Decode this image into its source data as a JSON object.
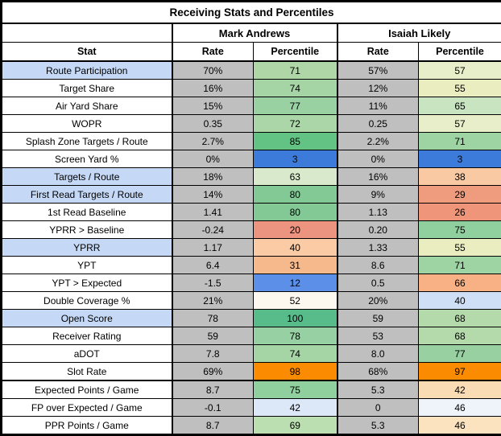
{
  "title": "Receiving Stats and Percentiles",
  "players": [
    {
      "name": "Mark Andrews"
    },
    {
      "name": "Isaiah Likely"
    }
  ],
  "columns": {
    "stat": "Stat",
    "rate": "Rate",
    "percentile": "Percentile"
  },
  "colors": {
    "rate_bg": "#BFBFBF",
    "stat_highlight_bg": "#C5D9F6",
    "stat_default_bg": "#FFFFFF",
    "border": "#000000",
    "percentile_low": "#3D7BDB",
    "percentile_high": "#57BB8A",
    "slot_rate_flag": "#FB8B00"
  },
  "rows": [
    {
      "stat": "Route Participation",
      "highlight": true,
      "thick_top": false,
      "mark": {
        "rate": "70%",
        "pct": "71",
        "pct_bg": "#AED6A6"
      },
      "likely": {
        "rate": "57%",
        "pct": "57",
        "pct_bg": "#E9EECA"
      }
    },
    {
      "stat": "Target Share",
      "highlight": false,
      "thick_top": false,
      "mark": {
        "rate": "16%",
        "pct": "74",
        "pct_bg": "#A5D4A5"
      },
      "likely": {
        "rate": "12%",
        "pct": "55",
        "pct_bg": "#E9EDBF"
      }
    },
    {
      "stat": "Air Yard Share",
      "highlight": false,
      "thick_top": false,
      "mark": {
        "rate": "15%",
        "pct": "77",
        "pct_bg": "#9AD1A3"
      },
      "likely": {
        "rate": "11%",
        "pct": "65",
        "pct_bg": "#C8E4C0"
      }
    },
    {
      "stat": "WOPR",
      "highlight": false,
      "thick_top": false,
      "mark": {
        "rate": "0.35",
        "pct": "72",
        "pct_bg": "#ABD7A8"
      },
      "likely": {
        "rate": "0.25",
        "pct": "57",
        "pct_bg": "#E9EECA"
      }
    },
    {
      "stat": "Splash Zone Targets / Route",
      "highlight": false,
      "thick_top": false,
      "mark": {
        "rate": "2.7%",
        "pct": "85",
        "pct_bg": "#63C384"
      },
      "likely": {
        "rate": "2.2%",
        "pct": "71",
        "pct_bg": "#9ED3A3"
      }
    },
    {
      "stat": "Screen Yard %",
      "highlight": false,
      "thick_top": false,
      "mark": {
        "rate": "0%",
        "pct": "3",
        "pct_bg": "#3D7BDB"
      },
      "likely": {
        "rate": "0%",
        "pct": "3",
        "pct_bg": "#3D7BDB"
      }
    },
    {
      "stat": "Targets / Route",
      "highlight": true,
      "thick_top": false,
      "mark": {
        "rate": "18%",
        "pct": "63",
        "pct_bg": "#D9EACC"
      },
      "likely": {
        "rate": "16%",
        "pct": "38",
        "pct_bg": "#F9C9A3"
      }
    },
    {
      "stat": "First Read Targets / Route",
      "highlight": true,
      "thick_top": false,
      "mark": {
        "rate": "14%",
        "pct": "80",
        "pct_bg": "#82C996"
      },
      "likely": {
        "rate": "9%",
        "pct": "29",
        "pct_bg": "#EF9B7E"
      }
    },
    {
      "stat": "1st Read Baseline",
      "highlight": false,
      "thick_top": false,
      "mark": {
        "rate": "1.41",
        "pct": "80",
        "pct_bg": "#82C996"
      },
      "likely": {
        "rate": "1.13",
        "pct": "26",
        "pct_bg": "#EE957A"
      }
    },
    {
      "stat": "YPRR > Baseline",
      "highlight": false,
      "thick_top": false,
      "mark": {
        "rate": "-0.24",
        "pct": "20",
        "pct_bg": "#EC9480"
      },
      "likely": {
        "rate": "0.20",
        "pct": "75",
        "pct_bg": "#90CF9E"
      }
    },
    {
      "stat": "YPRR",
      "highlight": true,
      "thick_top": false,
      "mark": {
        "rate": "1.17",
        "pct": "40",
        "pct_bg": "#FACBA4"
      },
      "likely": {
        "rate": "1.33",
        "pct": "55",
        "pct_bg": "#E9EDBF"
      }
    },
    {
      "stat": "YPT",
      "highlight": false,
      "thick_top": false,
      "mark": {
        "rate": "6.4",
        "pct": "31",
        "pct_bg": "#F5B98C"
      },
      "likely": {
        "rate": "8.6",
        "pct": "71",
        "pct_bg": "#9ED3A3"
      }
    },
    {
      "stat": "YPT > Expected",
      "highlight": false,
      "thick_top": false,
      "mark": {
        "rate": "-1.5",
        "pct": "12",
        "pct_bg": "#5B8FE8"
      },
      "likely": {
        "rate": "0.5",
        "pct": "66",
        "pct_bg": "#F8B184"
      }
    },
    {
      "stat": "Double Coverage %",
      "highlight": false,
      "thick_top": false,
      "mark": {
        "rate": "21%",
        "pct": "52",
        "pct_bg": "#FDF8EF"
      },
      "likely": {
        "rate": "20%",
        "pct": "40",
        "pct_bg": "#CFE0F6"
      }
    },
    {
      "stat": "Open Score",
      "highlight": true,
      "thick_top": false,
      "mark": {
        "rate": "78",
        "pct": "100",
        "pct_bg": "#57BB8A"
      },
      "likely": {
        "rate": "59",
        "pct": "68",
        "pct_bg": "#B4DAAC"
      }
    },
    {
      "stat": "Receiver Rating",
      "highlight": false,
      "thick_top": false,
      "mark": {
        "rate": "59",
        "pct": "78",
        "pct_bg": "#97D0A2"
      },
      "likely": {
        "rate": "53",
        "pct": "68",
        "pct_bg": "#B4DAAC"
      }
    },
    {
      "stat": "aDOT",
      "highlight": false,
      "thick_top": false,
      "mark": {
        "rate": "7.8",
        "pct": "74",
        "pct_bg": "#A5D4A5"
      },
      "likely": {
        "rate": "8.0",
        "pct": "77",
        "pct_bg": "#98D0A2"
      }
    },
    {
      "stat": "Slot Rate",
      "highlight": false,
      "thick_top": false,
      "mark": {
        "rate": "69%",
        "pct": "98",
        "pct_bg": "#FB8B00"
      },
      "likely": {
        "rate": "68%",
        "pct": "97",
        "pct_bg": "#FB8B00"
      }
    },
    {
      "stat": "Expected Points / Game",
      "highlight": false,
      "thick_top": true,
      "mark": {
        "rate": "8.7",
        "pct": "75",
        "pct_bg": "#90CF9E"
      },
      "likely": {
        "rate": "5.3",
        "pct": "42",
        "pct_bg": "#FADCB4"
      }
    },
    {
      "stat": "FP over Expected / Game",
      "highlight": false,
      "thick_top": false,
      "mark": {
        "rate": "-0.1",
        "pct": "42",
        "pct_bg": "#DCE7F7"
      },
      "likely": {
        "rate": "0",
        "pct": "46",
        "pct_bg": "#EFF4FB"
      }
    },
    {
      "stat": "PPR Points / Game",
      "highlight": false,
      "thick_top": false,
      "mark": {
        "rate": "8.7",
        "pct": "69",
        "pct_bg": "#BCDFB2"
      },
      "likely": {
        "rate": "5.3",
        "pct": "46",
        "pct_bg": "#FBE3C0"
      }
    }
  ]
}
